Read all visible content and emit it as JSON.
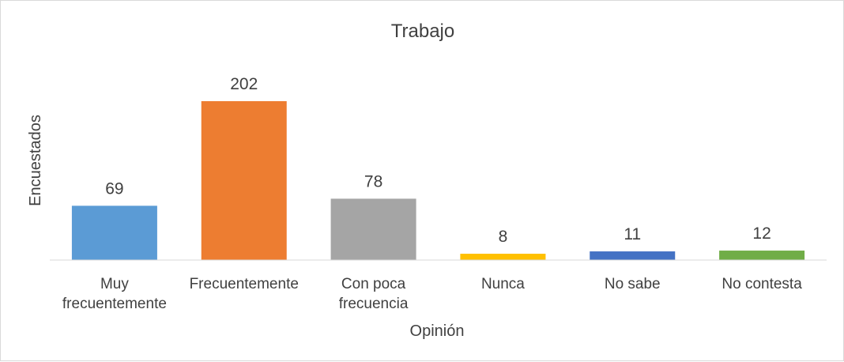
{
  "chart_data": {
    "type": "bar",
    "title": "Trabajo",
    "xlabel": "Opinión",
    "ylabel": "Encuestados",
    "categories": [
      [
        "Muy",
        "frecuentemente"
      ],
      [
        "Frecuentemente"
      ],
      [
        "Con poca",
        "frecuencia"
      ],
      [
        "Nunca"
      ],
      [
        "No sabe"
      ],
      [
        "No contesta"
      ]
    ],
    "values": [
      69,
      202,
      78,
      8,
      11,
      12
    ],
    "colors": [
      "#5b9bd5",
      "#ed7d31",
      "#a5a5a5",
      "#ffc000",
      "#4472c4",
      "#70ad47"
    ],
    "ylim": [
      0,
      202
    ],
    "grid": false,
    "legend": "none",
    "data_labels": true
  }
}
